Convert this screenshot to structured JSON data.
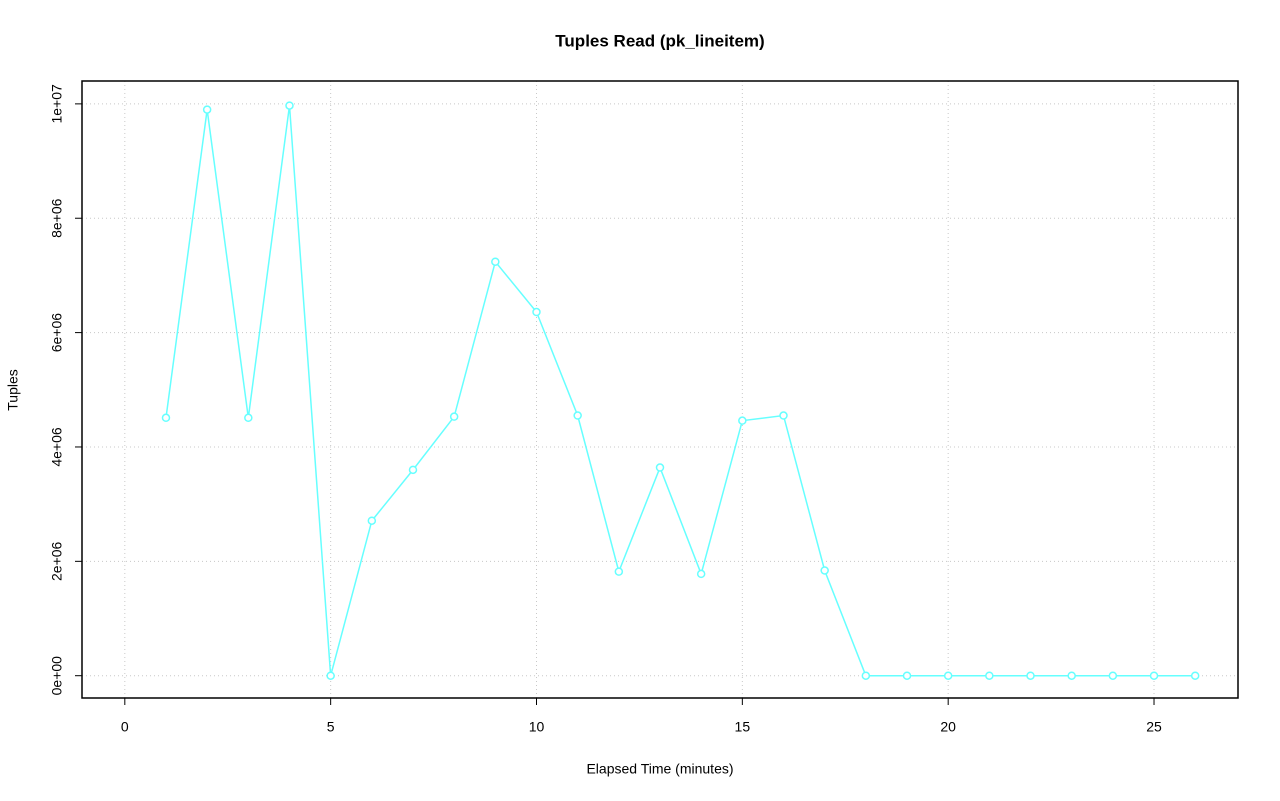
{
  "chart_data": {
    "type": "line",
    "title": "Tuples Read (pk_lineitem)",
    "xlabel": "Elapsed Time (minutes)",
    "ylabel": "Tuples",
    "x": [
      0,
      1,
      2,
      3,
      4,
      5,
      6,
      7,
      8,
      9,
      10,
      11,
      12,
      13,
      14,
      15,
      16,
      17,
      18,
      19,
      20,
      21,
      22,
      23,
      24,
      25,
      26
    ],
    "values": [
      null,
      4510000,
      9900000,
      4510000,
      9970000,
      0,
      2710000,
      3600000,
      4530000,
      7240000,
      6360000,
      4550000,
      1820000,
      3640000,
      1780000,
      4460000,
      4550000,
      1840000,
      0,
      0,
      0,
      0,
      0,
      0,
      0,
      0,
      0
    ],
    "color": "#66ffff",
    "xlim": [
      -1.04,
      27.04
    ],
    "xticks": [
      0,
      5,
      10,
      15,
      20,
      25
    ],
    "ylim": [
      -390000,
      10400000
    ],
    "yticks": [
      {
        "value": 0,
        "label": "0e+00"
      },
      {
        "value": 2000000,
        "label": "2e+06"
      },
      {
        "value": 4000000,
        "label": "4e+06"
      },
      {
        "value": 6000000,
        "label": "6e+06"
      },
      {
        "value": 8000000,
        "label": "8e+06"
      },
      {
        "value": 10000000,
        "label": "1e+07"
      }
    ],
    "grid": true
  }
}
